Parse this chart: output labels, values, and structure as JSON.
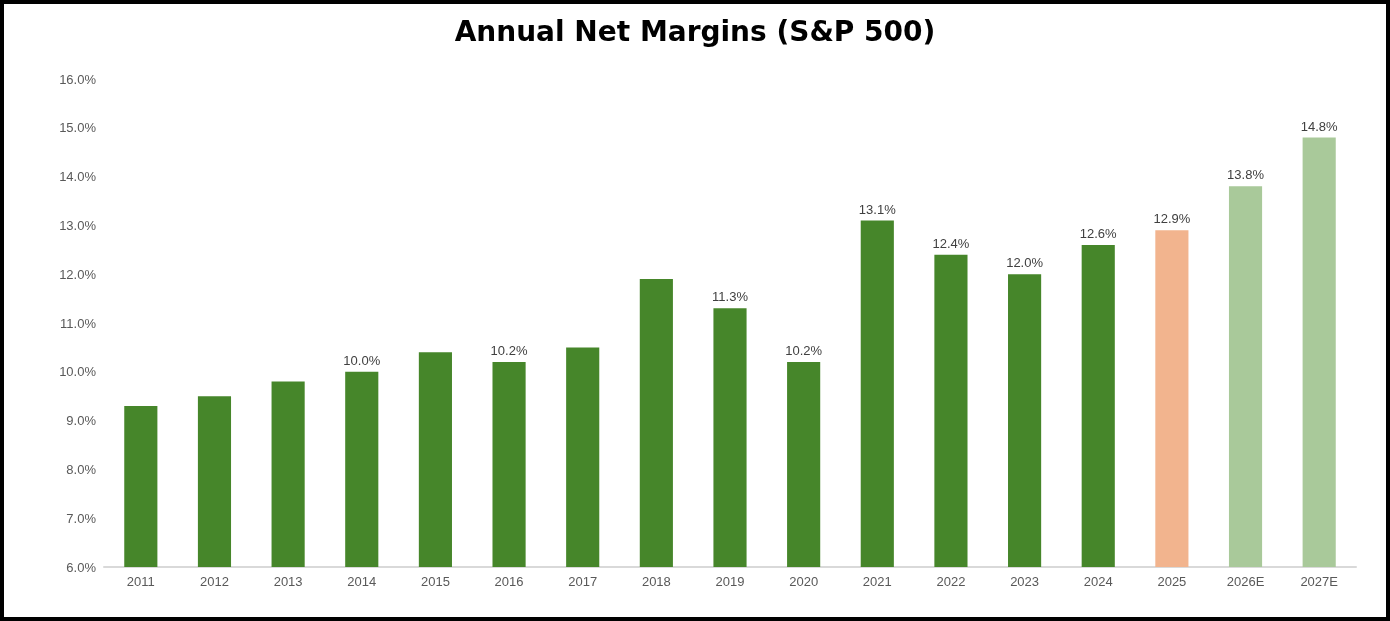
{
  "chart_data": {
    "type": "bar",
    "title": "Annual Net Margins (S&P 500)",
    "categories": [
      "2011",
      "2012",
      "2013",
      "2014",
      "2015",
      "2016",
      "2017",
      "2018",
      "2019",
      "2020",
      "2021",
      "2022",
      "2023",
      "2024",
      "2025",
      "2026E",
      "2027E"
    ],
    "values": [
      9.3,
      9.5,
      9.8,
      10.0,
      10.4,
      10.2,
      10.5,
      11.9,
      11.3,
      10.2,
      13.1,
      12.4,
      12.0,
      12.6,
      12.9,
      13.8,
      14.8
    ],
    "value_labels": [
      null,
      null,
      null,
      "10.0%",
      null,
      "10.2%",
      null,
      null,
      "11.3%",
      "10.2%",
      "13.1%",
      "12.4%",
      "12.0%",
      "12.6%",
      "12.9%",
      "13.8%",
      "14.8%"
    ],
    "colors": [
      "#46862a",
      "#46862a",
      "#46862a",
      "#46862a",
      "#46862a",
      "#46862a",
      "#46862a",
      "#46862a",
      "#46862a",
      "#46862a",
      "#46862a",
      "#46862a",
      "#46862a",
      "#46862a",
      "#f2b48e",
      "#a9c99a",
      "#a9c99a"
    ],
    "ylim": [
      6,
      16
    ],
    "yticks": [
      {
        "value": 6,
        "label": "6.0%"
      },
      {
        "value": 7,
        "label": "7.0%"
      },
      {
        "value": 8,
        "label": "8.0%"
      },
      {
        "value": 9,
        "label": "9.0%"
      },
      {
        "value": 10,
        "label": "10.0%"
      },
      {
        "value": 11,
        "label": "11.0%"
      },
      {
        "value": 12,
        "label": "12.0%"
      },
      {
        "value": 13,
        "label": "13.0%"
      },
      {
        "value": 14,
        "label": "14.0%"
      },
      {
        "value": 15,
        "label": "15.0%"
      },
      {
        "value": 16,
        "label": "16.0%"
      }
    ],
    "grid": false
  }
}
